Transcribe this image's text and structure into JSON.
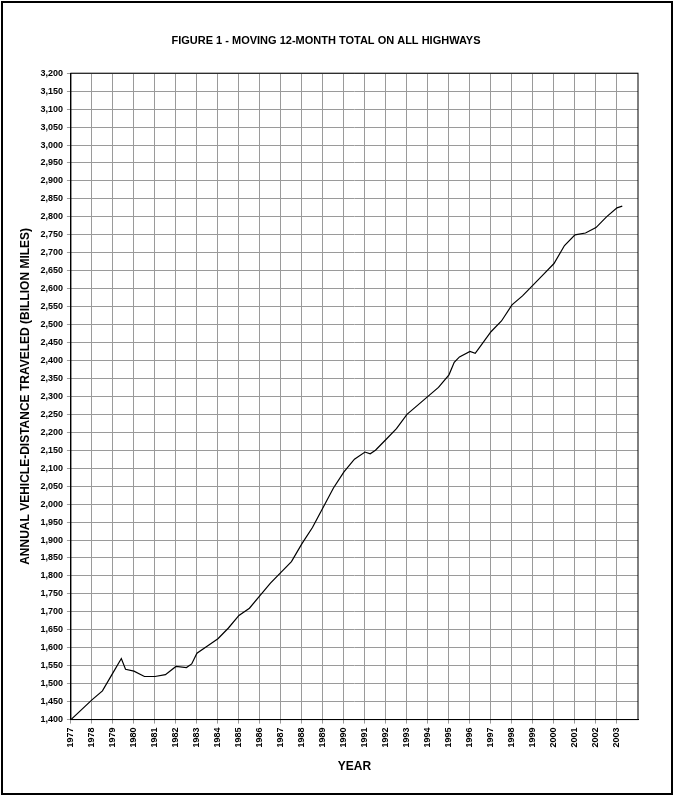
{
  "chart_data": {
    "type": "line",
    "title": "FIGURE 1 - MOVING 12-MONTH TOTAL ON ALL HIGHWAYS",
    "x_label": "YEAR",
    "y_label": "ANNUAL VEHICLE-DISTANCE TRAVELED (BILLION MILES)",
    "x": [
      1977.0,
      1978.0,
      1978.5,
      1979.0,
      1979.4,
      1979.6,
      1980.0,
      1980.5,
      1981.0,
      1981.5,
      1982.0,
      1982.5,
      1982.75,
      1983.0,
      1983.5,
      1984.0,
      1984.5,
      1985.0,
      1985.5,
      1986.0,
      1986.5,
      1987.0,
      1987.5,
      1988.0,
      1988.5,
      1989.0,
      1989.5,
      1990.0,
      1990.5,
      1991.0,
      1991.25,
      1991.5,
      1992.0,
      1992.5,
      1993.0,
      1993.5,
      1994.0,
      1994.5,
      1995.0,
      1995.25,
      1995.5,
      1996.0,
      1996.25,
      1996.5,
      1997.0,
      1997.5,
      1998.0,
      1998.5,
      1999.0,
      1999.5,
      2000.0,
      2000.5,
      2001.0,
      2001.5,
      2002.0,
      2002.5,
      2003.0,
      2003.25
    ],
    "values": [
      1400,
      1455,
      1480,
      1530,
      1570,
      1540,
      1535,
      1520,
      1520,
      1525,
      1548,
      1545,
      1555,
      1585,
      1605,
      1625,
      1655,
      1690,
      1710,
      1745,
      1780,
      1810,
      1840,
      1890,
      1935,
      1990,
      2045,
      2090,
      2125,
      2145,
      2140,
      2150,
      2180,
      2210,
      2250,
      2275,
      2300,
      2325,
      2360,
      2395,
      2410,
      2425,
      2420,
      2440,
      2480,
      2510,
      2555,
      2580,
      2610,
      2640,
      2670,
      2720,
      2750,
      2755,
      2770,
      2800,
      2825,
      2830
    ],
    "color": "#000000",
    "xlim": [
      1977,
      2004
    ],
    "xticks": [
      1977,
      1978,
      1979,
      1980,
      1981,
      1982,
      1983,
      1984,
      1985,
      1986,
      1987,
      1988,
      1989,
      1990,
      1991,
      1992,
      1993,
      1994,
      1995,
      1996,
      1997,
      1998,
      1999,
      2000,
      2001,
      2002,
      2003
    ],
    "ylim": [
      1400,
      3200
    ],
    "yticks": [
      {
        "value": 1400,
        "label": "1,400"
      },
      {
        "value": 1450,
        "label": "1,450"
      },
      {
        "value": 1500,
        "label": "1,500"
      },
      {
        "value": 1550,
        "label": "1,550"
      },
      {
        "value": 1600,
        "label": "1,600"
      },
      {
        "value": 1650,
        "label": "1,650"
      },
      {
        "value": 1700,
        "label": "1,700"
      },
      {
        "value": 1750,
        "label": "1,750"
      },
      {
        "value": 1800,
        "label": "1,800"
      },
      {
        "value": 1850,
        "label": "1,850"
      },
      {
        "value": 1900,
        "label": "1,900"
      },
      {
        "value": 1950,
        "label": "1,950"
      },
      {
        "value": 2000,
        "label": "2,000"
      },
      {
        "value": 2050,
        "label": "2,050"
      },
      {
        "value": 2100,
        "label": "2,100"
      },
      {
        "value": 2150,
        "label": "2,150"
      },
      {
        "value": 2200,
        "label": "2,200"
      },
      {
        "value": 2250,
        "label": "2,250"
      },
      {
        "value": 2300,
        "label": "2,300"
      },
      {
        "value": 2350,
        "label": "2,350"
      },
      {
        "value": 2400,
        "label": "2,400"
      },
      {
        "value": 2450,
        "label": "2,450"
      },
      {
        "value": 2500,
        "label": "2,500"
      },
      {
        "value": 2550,
        "label": "2,550"
      },
      {
        "value": 2600,
        "label": "2,600"
      },
      {
        "value": 2650,
        "label": "2,650"
      },
      {
        "value": 2700,
        "label": "2,700"
      },
      {
        "value": 2750,
        "label": "2,750"
      },
      {
        "value": 2800,
        "label": "2,800"
      },
      {
        "value": 2850,
        "label": "2,850"
      },
      {
        "value": 2900,
        "label": "2,900"
      },
      {
        "value": 2950,
        "label": "2,950"
      },
      {
        "value": 3000,
        "label": "3,000"
      },
      {
        "value": 3050,
        "label": "3,050"
      },
      {
        "value": 3100,
        "label": "3,100"
      },
      {
        "value": 3150,
        "label": "3,150"
      },
      {
        "value": 3200,
        "label": "3,200"
      }
    ],
    "grid": true
  }
}
